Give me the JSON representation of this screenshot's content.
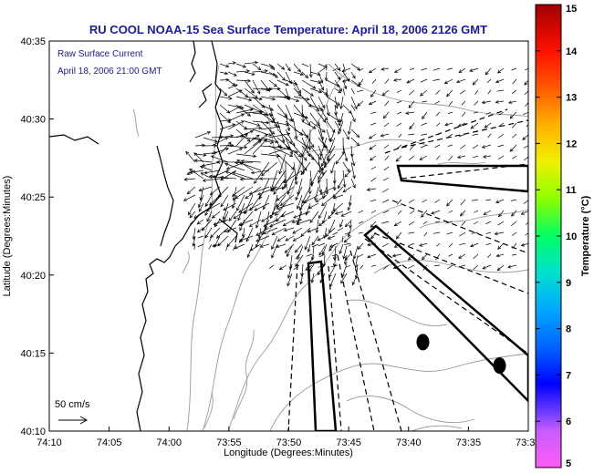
{
  "chart_data": {
    "type": "map",
    "title": "RU COOL  NOAA-15  Sea Surface Temperature:  April 18, 2006 2126 GMT",
    "xlabel": "Longitude (Degrees:Minutes)",
    "ylabel": "Latitude (Degrees:Minutes)",
    "x_ticks": [
      "74:10",
      "74:05",
      "74:00",
      "73:55",
      "73:50",
      "73:45",
      "73:40",
      "73:35",
      "73:3"
    ],
    "y_ticks": [
      "40:10",
      "40:15",
      "40:20",
      "40:25",
      "40:30",
      "40:35"
    ],
    "xlim_min_west": [
      90,
      50
    ],
    "ylim_min": [
      10,
      35
    ],
    "annotations": {
      "raw_surface_current": "Raw Surface Current",
      "current_time": "April 18, 2006 21:00 GMT",
      "scale_label": "50 cm/s",
      "scale_cm_s": 50
    },
    "colorbar": {
      "label": "Temperature (°C)",
      "min": 5,
      "max": 15,
      "ticks": [
        "5",
        "6",
        "7",
        "8",
        "9",
        "10",
        "11",
        "12",
        "13",
        "14",
        "15"
      ]
    },
    "colors": {
      "title": "#1a1aa6",
      "contour": "#9a9a9a",
      "coastline": "#000000",
      "vectors": "#000000"
    },
    "markers_lon_lat_min": [
      [
        58.8,
        15.7
      ],
      [
        52.4,
        14.2
      ]
    ]
  }
}
